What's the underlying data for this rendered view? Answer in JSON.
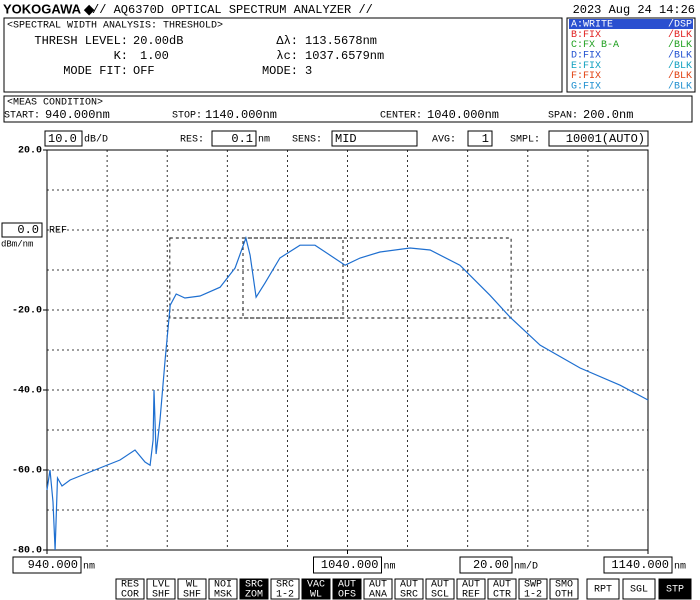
{
  "header": {
    "brand": "YOKOGAWA ◆",
    "model": "// AQ6370D OPTICAL SPECTRUM ANALYZER //",
    "datetime": "2023 Aug 24 14:26"
  },
  "analysis": {
    "title": "<SPECTRAL WIDTH ANALYSIS: THRESHOLD>",
    "thresh_label": "THRESH LEVEL:",
    "thresh_value": "20.00dB",
    "k_label": "K:",
    "k_value": "1.00",
    "modefit_label": "MODE FIT:",
    "modefit_value": "OFF",
    "dl_label": "Δλ:",
    "dl_value": "113.5678nm",
    "lc_label": "λc:",
    "lc_value": "1037.6579nm",
    "mode_label": "MODE:",
    "mode_value": "3",
    "lambda_c": 1037.6579,
    "delta_lambda": 113.5678
  },
  "traces": [
    {
      "name": "A:WRITE",
      "state": "/DSP",
      "color": "#ffffff",
      "active": true
    },
    {
      "name": "B:FIX",
      "state": "/BLK",
      "color": "#e02020",
      "active": false
    },
    {
      "name": "C:FX B-A",
      "state": "/BLK",
      "color": "#20a020",
      "active": false
    },
    {
      "name": "D:FIX",
      "state": "/BLK",
      "color": "#2050d0",
      "active": false
    },
    {
      "name": "E:FIX",
      "state": "/BLK",
      "color": "#10a0c0",
      "active": false
    },
    {
      "name": "F:FIX",
      "state": "/BLK",
      "color": "#e04010",
      "active": false
    },
    {
      "name": "G:FIX",
      "state": "/BLK",
      "color": "#2090d0",
      "active": false
    }
  ],
  "meas": {
    "title": "<MEAS CONDITION>",
    "start_label": "START:",
    "start": "940.000nm",
    "stop_label": "STOP:",
    "stop": "1140.000nm",
    "center_label": "CENTER:",
    "center": "1040.000nm",
    "span_label": "SPAN:",
    "span": "200.0nm"
  },
  "settings": {
    "scale": "10.0",
    "scale_unit": "dB/D",
    "res_label": "RES:",
    "res": "0.1",
    "res_unit": "nm",
    "sens_label": "SENS:",
    "sens": "MID",
    "avg_label": "AVG:",
    "avg": "1",
    "smpl_label": "SMPL:",
    "smpl": "10001(AUTO)"
  },
  "chart_data": {
    "type": "line",
    "color": "#1e6fd0",
    "x": [
      940,
      941,
      942,
      942.7,
      943.5,
      945,
      947.7,
      957.6,
      964.3,
      969.3,
      972.6,
      974.3,
      975.3,
      975.6,
      976.3,
      977.6,
      979.3,
      981,
      983,
      985.9,
      990.9,
      997.6,
      1002.6,
      1006.2,
      1007.6,
      1009.6,
      1012.5,
      1017.5,
      1024.2,
      1029.2,
      1034.2,
      1039.2,
      1044.2,
      1050.8,
      1060.8,
      1067.5,
      1077.4,
      1087.4,
      1094.1,
      1104.1,
      1117.4,
      1130.7,
      1140
    ],
    "values": [
      -65,
      -60,
      -68,
      -80,
      -62,
      -64,
      -62.5,
      -59.5,
      -57.5,
      -55,
      -58,
      -58.8,
      -52.5,
      -40,
      -56,
      -47.5,
      -32.5,
      -18.8,
      -16,
      -17,
      -16.5,
      -14.3,
      -9.5,
      -2,
      -6.3,
      -16.8,
      -13.3,
      -7,
      -3.8,
      -3.8,
      -6.3,
      -8.8,
      -7,
      -5.5,
      -4.5,
      -5,
      -8.8,
      -16.3,
      -21.8,
      -28.8,
      -34.5,
      -38.8,
      -42.5
    ],
    "xlim": [
      940,
      1140
    ],
    "ylim": [
      -80,
      20
    ],
    "grid": true,
    "grid_divisions": 10,
    "yticks": [
      {
        "value": 20,
        "label": "20.0"
      },
      {
        "value": -20,
        "label": "-20.0"
      },
      {
        "value": -40,
        "label": "-40.0"
      },
      {
        "value": -60,
        "label": "-60.0"
      },
      {
        "value": -80,
        "label": "-80.0"
      }
    ],
    "ref_level": {
      "value": 0,
      "label": "0.0"
    },
    "ref_text": "REF",
    "y_unit": "dBm/nm",
    "xticks": [
      {
        "value": 940,
        "label": "940.000"
      },
      {
        "value": 1040,
        "label": "1040.000"
      },
      {
        "value": 1140,
        "label": "1140.000"
      }
    ],
    "x_unit": "nm",
    "div_value": "20.00",
    "div_unit": "nm/D"
  },
  "softkeys": [
    {
      "top": "RES",
      "bottom": "COR",
      "active": false
    },
    {
      "top": "LVL",
      "bottom": "SHF",
      "active": false
    },
    {
      "top": "WL",
      "bottom": "SHF",
      "active": false
    },
    {
      "top": "NOI",
      "bottom": "MSK",
      "active": false
    },
    {
      "top": "SRC",
      "bottom": "ZOM",
      "active": true
    },
    {
      "top": "SRC",
      "bottom": "1-2",
      "active": false
    },
    {
      "top": "VAC",
      "bottom": "WL",
      "active": true
    },
    {
      "top": "AUT",
      "bottom": "OFS",
      "active": true
    },
    {
      "top": "AUT",
      "bottom": "ANA",
      "active": false
    },
    {
      "top": "AUT",
      "bottom": "SRC",
      "active": false
    },
    {
      "top": "AUT",
      "bottom": "SCL",
      "active": false
    },
    {
      "top": "AUT",
      "bottom": "REF",
      "active": false
    },
    {
      "top": "AUT",
      "bottom": "CTR",
      "active": false
    },
    {
      "top": "SWP",
      "bottom": "1-2",
      "active": false
    },
    {
      "top": "SMO",
      "bottom": "OTH",
      "active": false
    }
  ],
  "run_keys": [
    {
      "label": "RPT",
      "active": false
    },
    {
      "label": "SGL",
      "active": false
    },
    {
      "label": "STP",
      "active": true
    }
  ]
}
